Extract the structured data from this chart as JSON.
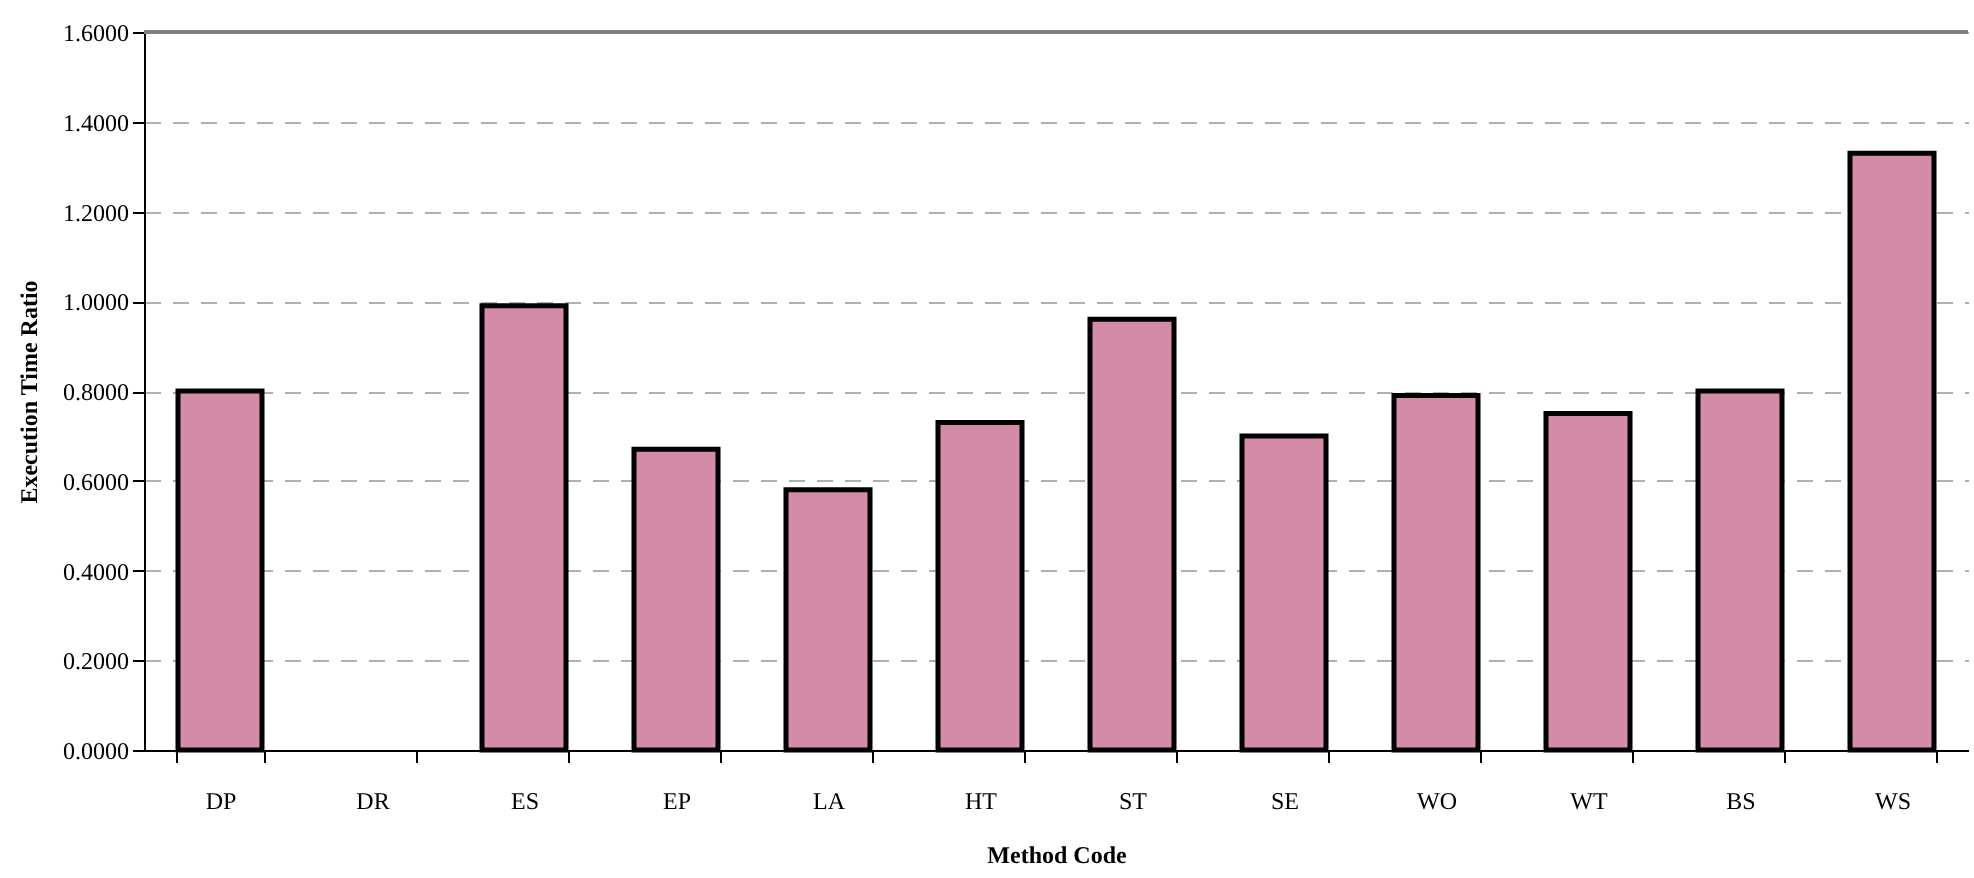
{
  "chart_data": {
    "type": "bar",
    "xlabel": "Method Code",
    "ylabel": "Execution Time Ratio",
    "categories": [
      "DP",
      "DR",
      "ES",
      "EP",
      "LA",
      "HT",
      "ST",
      "SE",
      "WO",
      "WT",
      "BS",
      "WS"
    ],
    "values": [
      0.8,
      null,
      0.99,
      0.67,
      0.58,
      0.73,
      0.96,
      0.7,
      0.79,
      0.75,
      0.8,
      1.33
    ],
    "color": "#d38aa6",
    "ylim": [
      0,
      1.6
    ],
    "yticks": [
      {
        "value": 0,
        "label": "0.0000"
      },
      {
        "value": 0.2,
        "label": "0.2000"
      },
      {
        "value": 0.4,
        "label": "0.4000"
      },
      {
        "value": 0.6,
        "label": "0.6000"
      },
      {
        "value": 0.8,
        "label": "0.8000"
      },
      {
        "value": 1.0,
        "label": "1.0000"
      },
      {
        "value": 1.2,
        "label": "1.2000"
      },
      {
        "value": 1.4,
        "label": "1.4000"
      },
      {
        "value": 1.6,
        "label": "1.6000"
      }
    ],
    "grid": "y"
  }
}
